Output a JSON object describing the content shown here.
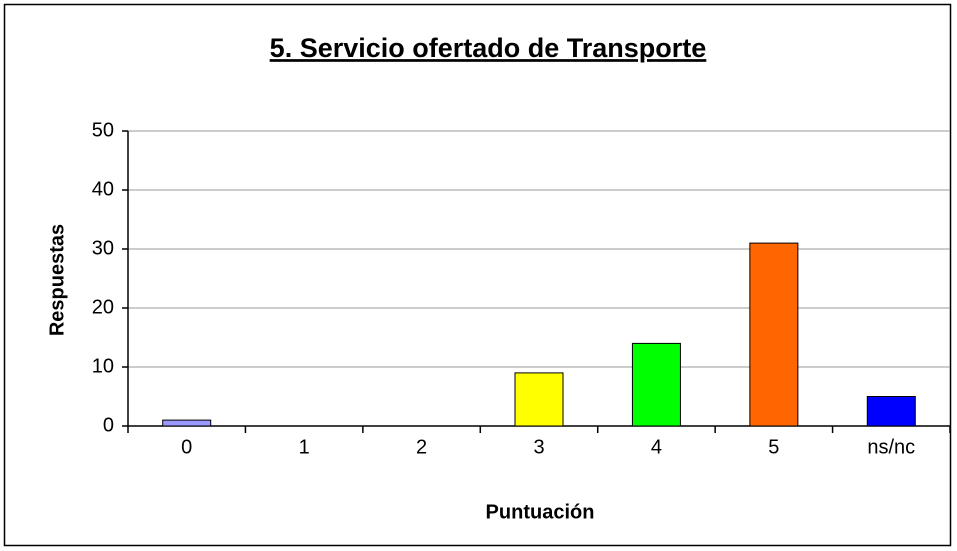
{
  "chart_data": {
    "type": "bar",
    "title": "5. Servicio ofertado de Transporte",
    "x_label": "Puntuación",
    "y_label": "Respuestas",
    "categories": [
      "0",
      "1",
      "2",
      "3",
      "4",
      "5",
      "ns/nc"
    ],
    "values": [
      1,
      0,
      0,
      9,
      14,
      31,
      5
    ],
    "colors": [
      "#9999ff",
      "#993366",
      "#ffffcc",
      "#ffff00",
      "#00ff00",
      "#ff6600",
      "#0000ff"
    ],
    "ylim": [
      0,
      50
    ],
    "yticks": [
      0,
      10,
      20,
      30,
      40,
      50
    ],
    "grid": true
  }
}
